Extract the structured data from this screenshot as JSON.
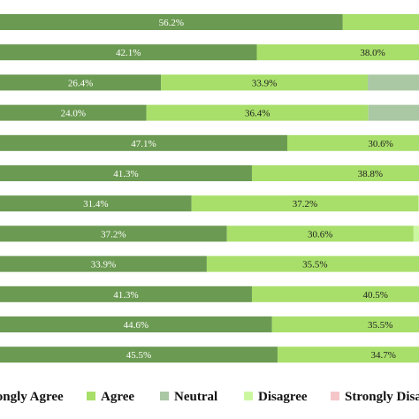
{
  "chart_data": {
    "type": "bar",
    "orientation": "horizontal",
    "stacked": true,
    "unit": "%",
    "xlim": [
      0,
      100
    ],
    "grid": false,
    "legend_position": "bottom",
    "series": [
      {
        "name": "Strongly Agree",
        "color": "#6b9a52",
        "values": [
          56.2,
          42.1,
          26.4,
          24.0,
          47.1,
          41.3,
          31.4,
          37.2,
          33.9,
          41.3,
          44.6,
          45.5
        ]
      },
      {
        "name": "Agree",
        "color": "#a8df6a",
        "values": [
          null,
          38.0,
          33.9,
          36.4,
          30.6,
          38.8,
          37.2,
          30.6,
          35.5,
          40.5,
          35.5,
          34.7
        ]
      },
      {
        "name": "Neutral",
        "color": "#a9c8a3",
        "values": [
          null,
          null,
          null,
          null,
          null,
          null,
          null,
          null,
          null,
          null,
          null,
          null
        ]
      },
      {
        "name": "Disagree",
        "color": "#ccf7a1",
        "values": [
          null,
          null,
          null,
          null,
          null,
          null,
          null,
          null,
          null,
          null,
          null,
          null
        ]
      },
      {
        "name": "Strongly Disagree",
        "color": "#f4c6c9",
        "values": [
          null,
          null,
          null,
          null,
          null,
          null,
          null,
          null,
          null,
          null,
          null,
          null
        ]
      }
    ],
    "labels": [
      [
        "56.2%",
        ""
      ],
      [
        "42.1%",
        "38.0%"
      ],
      [
        "26.4%",
        "33.9%"
      ],
      [
        "24.0%",
        "36.4%"
      ],
      [
        "47.1%",
        "30.6%"
      ],
      [
        "41.3%",
        "38.8%"
      ],
      [
        "31.4%",
        "37.2%"
      ],
      [
        "37.2%",
        "30.6%"
      ],
      [
        "33.9%",
        "35.5%"
      ],
      [
        "41.3%",
        "40.5%"
      ],
      [
        "44.6%",
        "35.5%"
      ],
      [
        "45.5%",
        "34.7%"
      ]
    ]
  }
}
